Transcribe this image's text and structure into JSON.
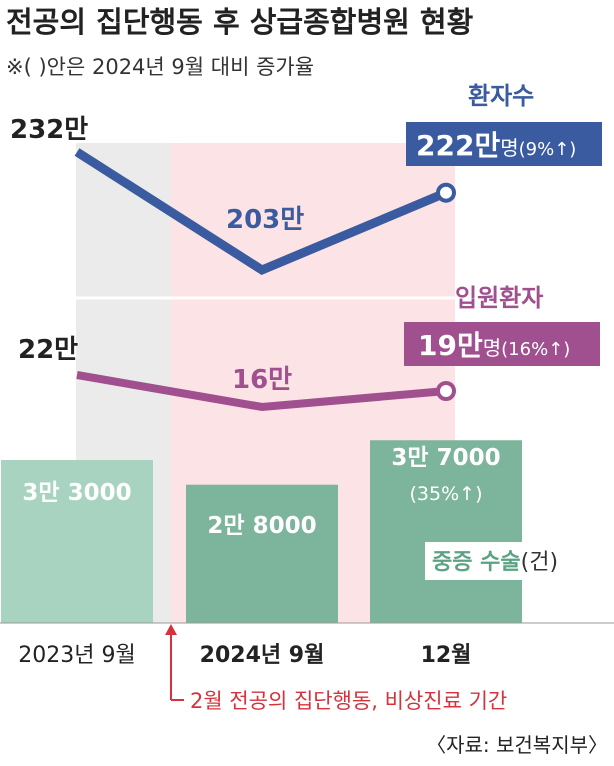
{
  "title": "전공의 집단행동 후 상급종합병원 현황",
  "subtitle": "※( )안은 2024년 9월 대비 증가율",
  "source": "〈자료: 보건복지부〉",
  "period_note": "2월 전공의 집단행동, 비상진료 기간",
  "categories": [
    "2023년 9월",
    "2024년 9월",
    "12월"
  ],
  "colors": {
    "patients_line": "#3a5ba0",
    "inpatients_line": "#a0508e",
    "bar_first": "#a9d3c1",
    "bar_rest": "#7db59c",
    "shade_gray": "#ebebeb",
    "shade_pink": "#fbe3e6",
    "note_red": "#d6323c"
  },
  "chart_data": [
    {
      "type": "line",
      "series": [
        {
          "name": "환자수",
          "values": [
            2320000,
            2030000,
            2220000
          ],
          "labels": [
            "232만",
            "203만",
            "222만"
          ],
          "unit": "명",
          "change": "(9%↑)"
        },
        {
          "name": "입원환자",
          "values": [
            220000,
            160000,
            190000
          ],
          "labels": [
            "22만",
            "16만",
            "19만"
          ],
          "unit": "명",
          "change": "(16%↑)"
        }
      ]
    },
    {
      "type": "bar",
      "series": [
        {
          "name": "중증 수술",
          "unit_note": "(건)",
          "values": [
            33000,
            28000,
            37000
          ],
          "labels": [
            "3만 3000",
            "2만 8000",
            "3만 7000"
          ],
          "change": [
            "",
            "",
            "(35%↑)"
          ]
        }
      ]
    }
  ]
}
